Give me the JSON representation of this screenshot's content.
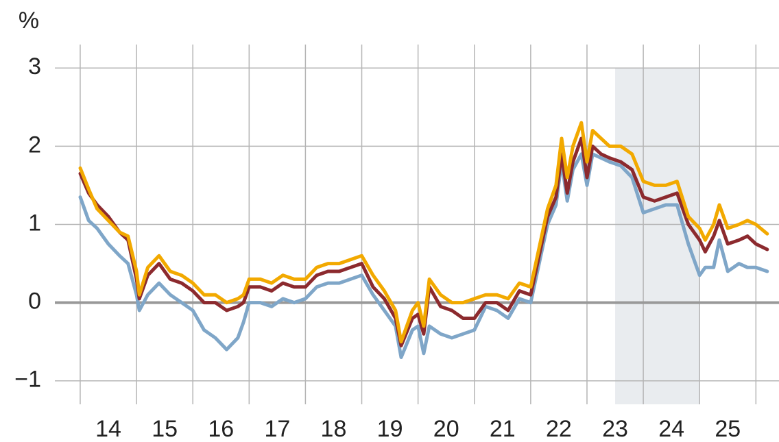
{
  "chart_data": {
    "type": "line",
    "ylabel": "%",
    "xlim": [
      2013.55,
      2026.41
    ],
    "ylim": [
      -1.3,
      3.3
    ],
    "yticks": [
      3,
      2,
      1,
      0,
      {
        "value": -1,
        "label": "−1"
      }
    ],
    "xgrid": [
      2014,
      2015,
      2016,
      2017,
      2018,
      2019,
      2020,
      2021,
      2022,
      2023,
      2024,
      2025,
      2026
    ],
    "xtick_labels": [
      {
        "value": 2014.5,
        "label": "14"
      },
      {
        "value": 2015.5,
        "label": "15"
      },
      {
        "value": 2016.5,
        "label": "16"
      },
      {
        "value": 2017.5,
        "label": "17"
      },
      {
        "value": 2018.5,
        "label": "18"
      },
      {
        "value": 2019.5,
        "label": "19"
      },
      {
        "value": 2020.5,
        "label": "20"
      },
      {
        "value": 2021.5,
        "label": "21"
      },
      {
        "value": 2022.5,
        "label": "22"
      },
      {
        "value": 2023.5,
        "label": "23"
      },
      {
        "value": 2024.5,
        "label": "24"
      },
      {
        "value": 2025.5,
        "label": "25"
      }
    ],
    "grid": true,
    "shaded_range": [
      2023.5,
      2025.0
    ],
    "shade_color": "#e9ecef",
    "x": [
      2014.0,
      2014.15,
      2014.3,
      2014.5,
      2014.7,
      2014.85,
      2015.0,
      2015.05,
      2015.2,
      2015.4,
      2015.6,
      2015.8,
      2016.0,
      2016.2,
      2016.4,
      2016.6,
      2016.8,
      2016.9,
      2017.0,
      2017.2,
      2017.4,
      2017.6,
      2017.8,
      2018.0,
      2018.2,
      2018.4,
      2018.6,
      2018.8,
      2019.0,
      2019.2,
      2019.4,
      2019.6,
      2019.7,
      2019.9,
      2020.0,
      2020.1,
      2020.2,
      2020.4,
      2020.6,
      2020.8,
      2021.0,
      2021.2,
      2021.4,
      2021.6,
      2021.8,
      2022.0,
      2022.15,
      2022.3,
      2022.45,
      2022.55,
      2022.65,
      2022.75,
      2022.9,
      2023.0,
      2023.1,
      2023.25,
      2023.4,
      2023.6,
      2023.8,
      2024.0,
      2024.2,
      2024.4,
      2024.6,
      2024.8,
      2025.0,
      2025.1,
      2025.25,
      2025.35,
      2025.5,
      2025.7,
      2025.85,
      2026.0,
      2026.2
    ],
    "series": [
      {
        "color": "#7fa6c8",
        "values": [
          1.35,
          1.05,
          0.95,
          0.75,
          0.6,
          0.5,
          0.1,
          -0.1,
          0.1,
          0.25,
          0.1,
          0.0,
          -0.1,
          -0.35,
          -0.45,
          -0.6,
          -0.45,
          -0.25,
          0.0,
          0.0,
          -0.05,
          0.05,
          0.0,
          0.05,
          0.2,
          0.25,
          0.25,
          0.3,
          0.35,
          0.1,
          -0.1,
          -0.3,
          -0.7,
          -0.35,
          -0.3,
          -0.65,
          -0.3,
          -0.4,
          -0.45,
          -0.4,
          -0.35,
          -0.05,
          -0.1,
          -0.2,
          0.05,
          0.0,
          0.5,
          1.0,
          1.25,
          1.8,
          1.3,
          1.7,
          1.9,
          1.5,
          1.9,
          1.85,
          1.8,
          1.75,
          1.6,
          1.15,
          1.2,
          1.25,
          1.25,
          0.75,
          0.35,
          0.45,
          0.45,
          0.8,
          0.4,
          0.5,
          0.45,
          0.45,
          0.4
        ]
      },
      {
        "color": "#8c2a2e",
        "values": [
          1.65,
          1.4,
          1.25,
          1.1,
          0.9,
          0.8,
          0.3,
          0.05,
          0.35,
          0.5,
          0.3,
          0.25,
          0.15,
          0.0,
          0.0,
          -0.1,
          -0.05,
          0.0,
          0.2,
          0.2,
          0.15,
          0.25,
          0.2,
          0.2,
          0.35,
          0.4,
          0.4,
          0.45,
          0.5,
          0.2,
          0.05,
          -0.2,
          -0.55,
          -0.2,
          -0.15,
          -0.4,
          0.2,
          -0.05,
          -0.1,
          -0.2,
          -0.2,
          0.0,
          0.0,
          -0.1,
          0.15,
          0.1,
          0.6,
          1.1,
          1.35,
          1.9,
          1.4,
          1.8,
          2.1,
          1.6,
          2.0,
          1.9,
          1.85,
          1.8,
          1.7,
          1.35,
          1.3,
          1.35,
          1.4,
          1.0,
          0.8,
          0.65,
          0.85,
          1.05,
          0.75,
          0.8,
          0.85,
          0.75,
          0.68
        ]
      },
      {
        "color": "#f2a900",
        "values": [
          1.72,
          1.45,
          1.2,
          1.05,
          0.9,
          0.85,
          0.4,
          0.1,
          0.45,
          0.6,
          0.4,
          0.35,
          0.25,
          0.1,
          0.1,
          0.0,
          0.05,
          0.1,
          0.3,
          0.3,
          0.25,
          0.35,
          0.3,
          0.3,
          0.45,
          0.5,
          0.5,
          0.55,
          0.6,
          0.35,
          0.15,
          -0.1,
          -0.5,
          -0.1,
          0.0,
          -0.3,
          0.3,
          0.1,
          0.0,
          0.0,
          0.05,
          0.1,
          0.1,
          0.05,
          0.25,
          0.2,
          0.7,
          1.2,
          1.5,
          2.1,
          1.6,
          2.0,
          2.3,
          1.8,
          2.2,
          2.1,
          2.0,
          2.0,
          1.9,
          1.55,
          1.5,
          1.5,
          1.55,
          1.1,
          0.95,
          0.8,
          1.0,
          1.25,
          0.95,
          1.0,
          1.05,
          1.0,
          0.88
        ]
      }
    ]
  }
}
